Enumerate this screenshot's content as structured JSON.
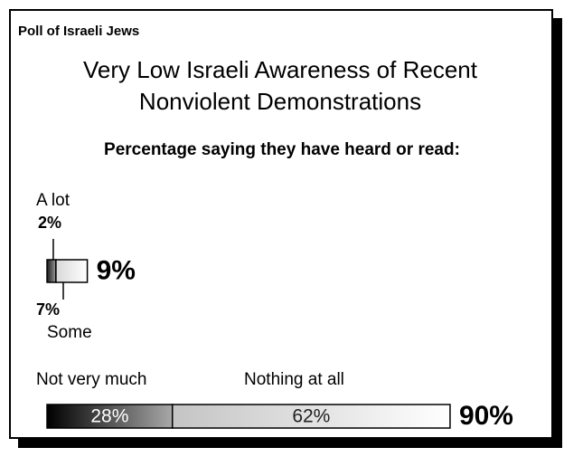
{
  "chart_data": {
    "type": "stacked_bar",
    "header": "Poll of Israeli Jews",
    "title": "Very Low Israeli Awareness of Recent Nonviolent Demonstrations",
    "subtitle": "Percentage saying they have heard or read:",
    "categories": [
      null,
      null
    ],
    "series": [
      {
        "name": "A lot",
        "color": "#1a1a1a",
        "values": [
          2,
          null
        ],
        "value_labels": [
          "2%",
          null
        ]
      },
      {
        "name": "Some",
        "color": "#d8d8d8",
        "values": [
          7,
          null
        ],
        "value_labels": [
          "7%",
          null
        ]
      },
      {
        "name": "Not very much",
        "color": "#000000",
        "values": [
          null,
          28
        ],
        "value_labels": [
          null,
          "28%"
        ]
      },
      {
        "name": "Nothing at all",
        "color": "#c4c4c4",
        "values": [
          null,
          62
        ],
        "value_labels": [
          null,
          "62%"
        ]
      }
    ],
    "totals": [
      9,
      90
    ],
    "total_labels": [
      "9%",
      "90%"
    ]
  }
}
